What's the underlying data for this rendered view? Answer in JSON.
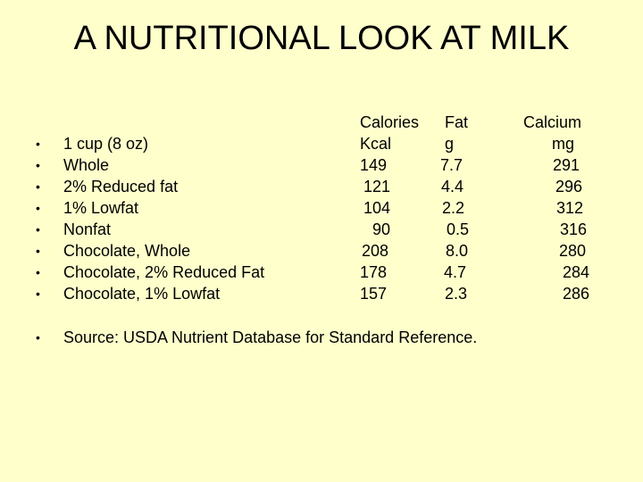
{
  "title": "A NUTRITIONAL LOOK AT MILK",
  "items": [
    "1 cup (8 oz)",
    "Whole",
    "2% Reduced fat",
    "1% Lowfat",
    "Nonfat",
    "Chocolate, Whole",
    "Chocolate, 2% Reduced Fat",
    "Chocolate, 1% Lowfat"
  ],
  "columns": {
    "calories": {
      "header": "Calories",
      "unit": "Kcal",
      "values": [
        "149",
        "121",
        "104",
        "90",
        "208",
        "178",
        "157"
      ]
    },
    "fat": {
      "header": "Fat",
      "unit": "g",
      "values": [
        "7.7",
        "4.4",
        "2.2",
        "0.5",
        "8.0",
        "4.7",
        "2.3"
      ]
    },
    "calcium": {
      "header": "Calcium",
      "unit": "mg",
      "values": [
        "291",
        "296",
        "312",
        "316",
        "280",
        "284",
        "286"
      ]
    }
  },
  "source": "Source: USDA Nutrient Database for Standard Reference.",
  "bullet_symbol": "•",
  "colors": {
    "background": "#ffffcc",
    "text": "#000000"
  }
}
